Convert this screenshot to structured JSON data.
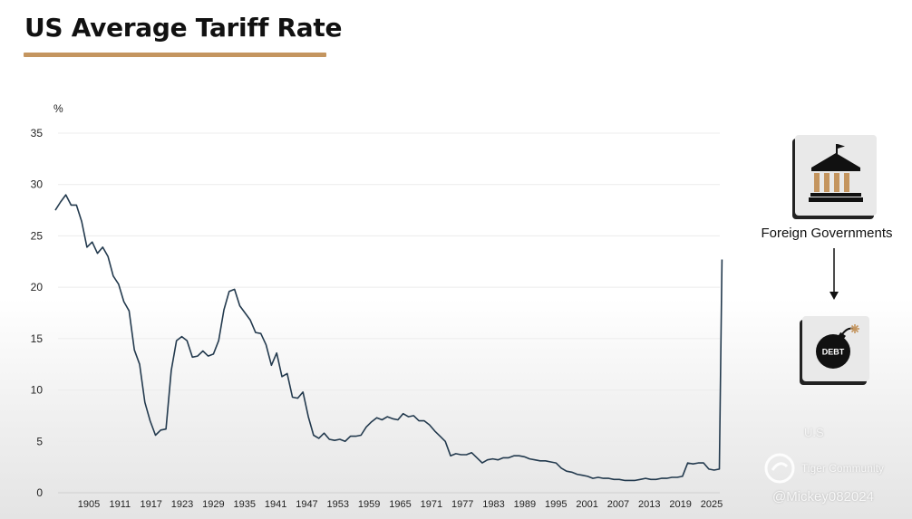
{
  "title": "US Average Tariff Rate",
  "accent_color": "#c4955f",
  "line_color": "#233a4e",
  "chart_data": {
    "type": "line",
    "unit_label": "%",
    "xlabel": "",
    "ylabel": "%",
    "xlim": [
      1899,
      2025.6
    ],
    "ylim": [
      0,
      35
    ],
    "yticks": [
      0,
      5,
      10,
      15,
      20,
      25,
      30,
      35
    ],
    "xtick_labels": [
      "1905",
      "1911",
      "1917",
      "1923",
      "1929",
      "1935",
      "1941",
      "1947",
      "1953",
      "1959",
      "1965",
      "1971",
      "1977",
      "1983",
      "1989",
      "1995",
      "2001",
      "2007",
      "2013",
      "2019",
      "2025"
    ],
    "grid": true,
    "series": [
      {
        "name": "US Average Tariff Rate",
        "points": [
          [
            1899,
            27.5
          ],
          [
            1900,
            28.3
          ],
          [
            1901,
            29.0
          ],
          [
            1902,
            28.0
          ],
          [
            1903,
            28.0
          ],
          [
            1904,
            26.4
          ],
          [
            1905,
            23.9
          ],
          [
            1906,
            24.4
          ],
          [
            1907,
            23.3
          ],
          [
            1908,
            23.9
          ],
          [
            1909,
            23.0
          ],
          [
            1910,
            21.1
          ],
          [
            1911,
            20.3
          ],
          [
            1912,
            18.6
          ],
          [
            1913,
            17.7
          ],
          [
            1914,
            13.9
          ],
          [
            1915,
            12.5
          ],
          [
            1916,
            8.8
          ],
          [
            1917,
            7.0
          ],
          [
            1918,
            5.6
          ],
          [
            1919,
            6.1
          ],
          [
            1920,
            6.2
          ],
          [
            1921,
            11.9
          ],
          [
            1922,
            14.8
          ],
          [
            1923,
            15.2
          ],
          [
            1924,
            14.8
          ],
          [
            1925,
            13.2
          ],
          [
            1926,
            13.3
          ],
          [
            1927,
            13.8
          ],
          [
            1928,
            13.3
          ],
          [
            1929,
            13.5
          ],
          [
            1930,
            14.8
          ],
          [
            1931,
            17.8
          ],
          [
            1932,
            19.6
          ],
          [
            1933,
            19.8
          ],
          [
            1934,
            18.2
          ],
          [
            1935,
            17.5
          ],
          [
            1936,
            16.8
          ],
          [
            1937,
            15.6
          ],
          [
            1938,
            15.5
          ],
          [
            1939,
            14.4
          ],
          [
            1940,
            12.4
          ],
          [
            1941,
            13.6
          ],
          [
            1942,
            11.3
          ],
          [
            1943,
            11.6
          ],
          [
            1944,
            9.3
          ],
          [
            1945,
            9.2
          ],
          [
            1946,
            9.8
          ],
          [
            1947,
            7.4
          ],
          [
            1948,
            5.6
          ],
          [
            1949,
            5.3
          ],
          [
            1950,
            5.8
          ],
          [
            1951,
            5.2
          ],
          [
            1952,
            5.1
          ],
          [
            1953,
            5.2
          ],
          [
            1954,
            5.0
          ],
          [
            1955,
            5.5
          ],
          [
            1956,
            5.5
          ],
          [
            1957,
            5.6
          ],
          [
            1958,
            6.4
          ],
          [
            1959,
            6.9
          ],
          [
            1960,
            7.3
          ],
          [
            1961,
            7.1
          ],
          [
            1962,
            7.4
          ],
          [
            1963,
            7.2
          ],
          [
            1964,
            7.1
          ],
          [
            1965,
            7.7
          ],
          [
            1966,
            7.4
          ],
          [
            1967,
            7.5
          ],
          [
            1968,
            7.0
          ],
          [
            1969,
            7.0
          ],
          [
            1970,
            6.6
          ],
          [
            1971,
            6.0
          ],
          [
            1972,
            5.5
          ],
          [
            1973,
            5.0
          ],
          [
            1974,
            3.6
          ],
          [
            1975,
            3.8
          ],
          [
            1976,
            3.7
          ],
          [
            1977,
            3.7
          ],
          [
            1978,
            3.9
          ],
          [
            1979,
            3.4
          ],
          [
            1980,
            2.9
          ],
          [
            1981,
            3.2
          ],
          [
            1982,
            3.3
          ],
          [
            1983,
            3.2
          ],
          [
            1984,
            3.4
          ],
          [
            1985,
            3.4
          ],
          [
            1986,
            3.6
          ],
          [
            1987,
            3.6
          ],
          [
            1988,
            3.5
          ],
          [
            1989,
            3.3
          ],
          [
            1990,
            3.2
          ],
          [
            1991,
            3.1
          ],
          [
            1992,
            3.1
          ],
          [
            1993,
            3.0
          ],
          [
            1994,
            2.9
          ],
          [
            1995,
            2.4
          ],
          [
            1996,
            2.1
          ],
          [
            1997,
            2.0
          ],
          [
            1998,
            1.8
          ],
          [
            1999,
            1.7
          ],
          [
            2000,
            1.6
          ],
          [
            2001,
            1.4
          ],
          [
            2002,
            1.5
          ],
          [
            2003,
            1.4
          ],
          [
            2004,
            1.4
          ],
          [
            2005,
            1.3
          ],
          [
            2006,
            1.3
          ],
          [
            2007,
            1.2
          ],
          [
            2008,
            1.2
          ],
          [
            2009,
            1.2
          ],
          [
            2010,
            1.3
          ],
          [
            2011,
            1.4
          ],
          [
            2012,
            1.3
          ],
          [
            2013,
            1.3
          ],
          [
            2014,
            1.4
          ],
          [
            2015,
            1.4
          ],
          [
            2016,
            1.5
          ],
          [
            2017,
            1.5
          ],
          [
            2018,
            1.6
          ],
          [
            2019,
            2.9
          ],
          [
            2020,
            2.8
          ],
          [
            2021,
            2.9
          ],
          [
            2022,
            2.9
          ],
          [
            2023,
            2.3
          ],
          [
            2024,
            2.2
          ],
          [
            2025,
            2.3
          ],
          [
            2025.5,
            22.7
          ]
        ]
      }
    ]
  },
  "side_panel": {
    "label": "Foreign Governments",
    "government_icon": "government-building-icon",
    "debt_icon": "debt-bomb-icon",
    "debt_label": "DEBT"
  },
  "watermarks": {
    "region_text": "U.S",
    "community": "Tiger Community",
    "handle": "@Mickey082024"
  }
}
